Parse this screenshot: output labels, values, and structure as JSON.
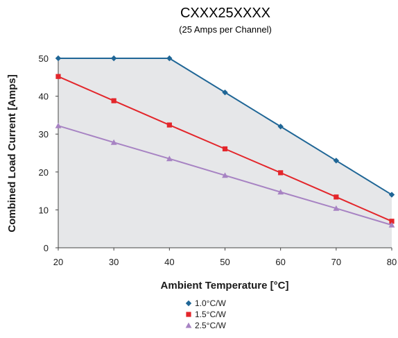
{
  "chart_data": {
    "type": "line",
    "title": "CXXX25XXXX",
    "subtitle": "(25 Amps per Channel)",
    "xlabel": "Ambient Temperature [°C]",
    "ylabel": "Combined Load Current [Amps]",
    "x": [
      20,
      30,
      40,
      50,
      60,
      70,
      80
    ],
    "xlim": [
      20,
      80
    ],
    "ylim": [
      0,
      50
    ],
    "xticks": [
      "20",
      "30",
      "40",
      "50",
      "60",
      "70",
      "80"
    ],
    "yticks": [
      "0",
      "10",
      "20",
      "30",
      "40",
      "50"
    ],
    "grid": false,
    "legend_position": "bottom-center",
    "plot_background": "#e6e7e9",
    "series": [
      {
        "name": "1.0°C/W",
        "color": "#1f6696",
        "marker": "diamond",
        "values": [
          50,
          50,
          50,
          41,
          32,
          23,
          14
        ]
      },
      {
        "name": "1.5°C/W",
        "color": "#e3262b",
        "marker": "square",
        "values": [
          45.2,
          38.8,
          32.4,
          26.1,
          19.8,
          13.4,
          7
        ]
      },
      {
        "name": "2.5°C/W",
        "color": "#a783c3",
        "marker": "triangle",
        "values": [
          32.2,
          27.8,
          23.5,
          19.1,
          14.7,
          10.4,
          6
        ]
      }
    ]
  }
}
